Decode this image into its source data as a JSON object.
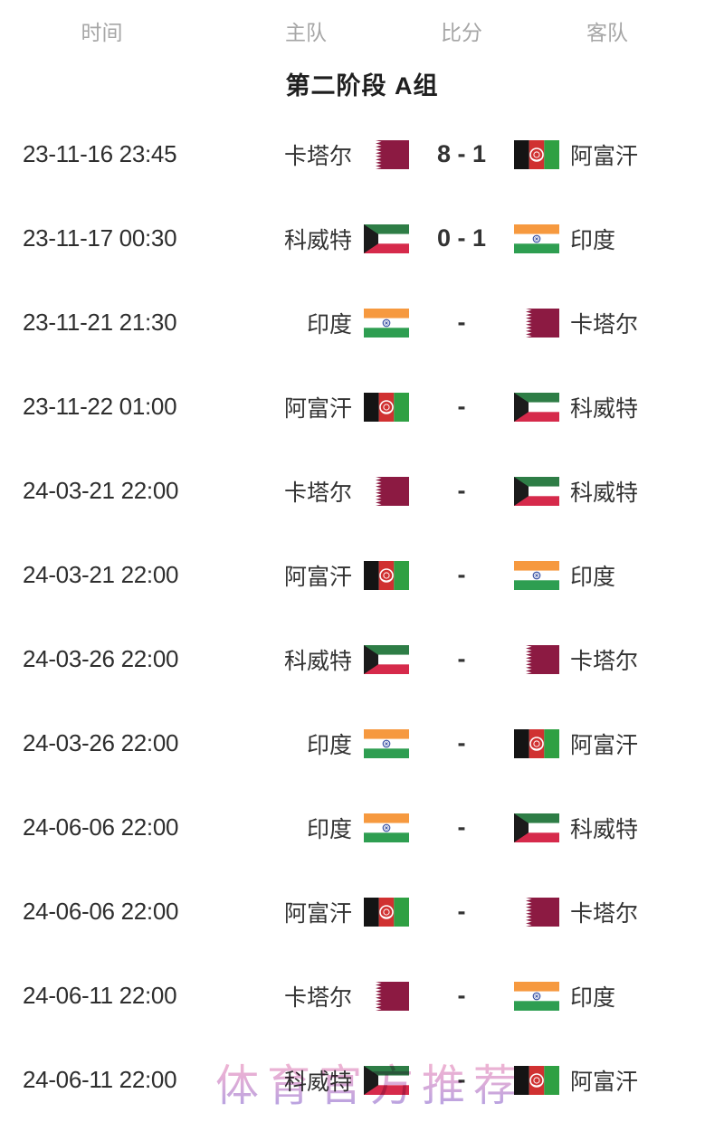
{
  "header": {
    "columns": [
      {
        "key": "time",
        "label": "时间"
      },
      {
        "key": "home",
        "label": "主队"
      },
      {
        "key": "score",
        "label": "比分"
      },
      {
        "key": "away",
        "label": "客队"
      }
    ]
  },
  "section": {
    "title": "第二阶段 A组"
  },
  "teams": {
    "qatar": {
      "name": "卡塔尔",
      "flag_icon": "qatar-flag",
      "colors": {
        "maroon": "#8C1A42",
        "white": "#FFFFFF"
      }
    },
    "afghanistan": {
      "name": "阿富汗",
      "flag_icon": "afghanistan-flag",
      "colors": {
        "black": "#141414",
        "red": "#D03131",
        "green": "#2FA043",
        "white": "#FFFFFF"
      }
    },
    "kuwait": {
      "name": "科威特",
      "flag_icon": "kuwait-flag",
      "colors": {
        "green": "#2E7D46",
        "white": "#FFFFFF",
        "red": "#D62A4B",
        "black": "#1B1B1B"
      }
    },
    "india": {
      "name": "印度",
      "flag_icon": "india-flag",
      "colors": {
        "saffron": "#F6993F",
        "white": "#FFFFFF",
        "green": "#2E9E51",
        "navy": "#3A53A4"
      }
    }
  },
  "matches": [
    {
      "time": "23-11-16 23:45",
      "home": "qatar",
      "score": "8 - 1",
      "away": "afghanistan"
    },
    {
      "time": "23-11-17 00:30",
      "home": "kuwait",
      "score": "0 - 1",
      "away": "india"
    },
    {
      "time": "23-11-21 21:30",
      "home": "india",
      "score": "-",
      "away": "qatar"
    },
    {
      "time": "23-11-22 01:00",
      "home": "afghanistan",
      "score": "-",
      "away": "kuwait"
    },
    {
      "time": "24-03-21 22:00",
      "home": "qatar",
      "score": "-",
      "away": "kuwait"
    },
    {
      "time": "24-03-21 22:00",
      "home": "afghanistan",
      "score": "-",
      "away": "india"
    },
    {
      "time": "24-03-26 22:00",
      "home": "kuwait",
      "score": "-",
      "away": "qatar"
    },
    {
      "time": "24-03-26 22:00",
      "home": "india",
      "score": "-",
      "away": "afghanistan"
    },
    {
      "time": "24-06-06 22:00",
      "home": "india",
      "score": "-",
      "away": "kuwait"
    },
    {
      "time": "24-06-06 22:00",
      "home": "afghanistan",
      "score": "-",
      "away": "qatar"
    },
    {
      "time": "24-06-11 22:00",
      "home": "qatar",
      "score": "-",
      "away": "india"
    },
    {
      "time": "24-06-11 22:00",
      "home": "kuwait",
      "score": "-",
      "away": "afghanistan"
    }
  ],
  "watermark": {
    "text": "体育官方推荐",
    "gradient_top": "#F6B8D0",
    "gradient_bottom": "#B1A0E2"
  },
  "text_colors": {
    "header": "#A6A6A6",
    "time": "#2E2E2E",
    "team": "#333333",
    "score": "#333333",
    "title": "#1F1F1F"
  }
}
